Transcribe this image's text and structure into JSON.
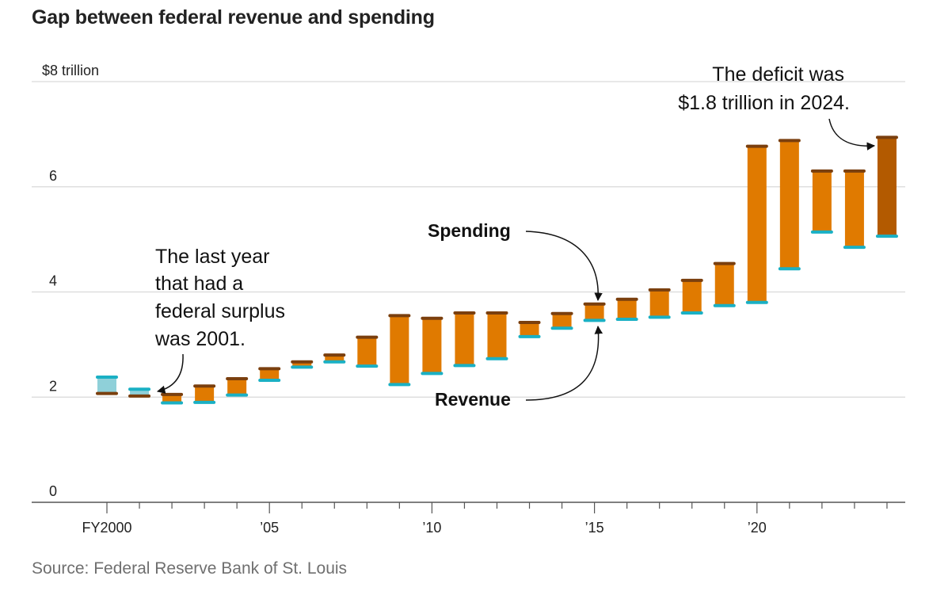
{
  "chart_data": {
    "type": "range-bar",
    "title": "Gap between federal revenue and spending",
    "source": "Source: Federal Reserve Bank of St. Louis",
    "y_unit_label": "$8 trillion",
    "ylim": [
      0,
      8
    ],
    "y_ticks": [
      {
        "value": 0,
        "label": "0"
      },
      {
        "value": 2,
        "label": "2"
      },
      {
        "value": 4,
        "label": "4"
      },
      {
        "value": 6,
        "label": "6"
      },
      {
        "value": 8,
        "label": "$8 trillion"
      }
    ],
    "xlim": [
      1999.5,
      2024.5
    ],
    "x_ticks": [
      {
        "value": 2000,
        "label": "FY2000"
      },
      {
        "value": 2005,
        "label": "’05"
      },
      {
        "value": 2010,
        "label": "’10"
      },
      {
        "value": 2015,
        "label": "’15"
      },
      {
        "value": 2020,
        "label": "’20"
      }
    ],
    "grid": true,
    "series": [
      {
        "name": "Spending",
        "color": "#7a3f0e"
      },
      {
        "name": "Revenue",
        "color": "#1ab0c4"
      }
    ],
    "colors": {
      "deficit_fill": "#e07a00",
      "surplus_fill": "#8fd0d9",
      "highlight_fill": "#b35a00",
      "spending_cap": "#7a3f0e",
      "revenue_cap": "#1ab0c4"
    },
    "data": [
      {
        "year": 2000,
        "revenue": 2.38,
        "spending": 2.07
      },
      {
        "year": 2001,
        "revenue": 2.15,
        "spending": 2.02
      },
      {
        "year": 2002,
        "revenue": 1.89,
        "spending": 2.05
      },
      {
        "year": 2003,
        "revenue": 1.9,
        "spending": 2.21
      },
      {
        "year": 2004,
        "revenue": 2.04,
        "spending": 2.35
      },
      {
        "year": 2005,
        "revenue": 2.32,
        "spending": 2.54
      },
      {
        "year": 2006,
        "revenue": 2.57,
        "spending": 2.67
      },
      {
        "year": 2007,
        "revenue": 2.67,
        "spending": 2.8
      },
      {
        "year": 2008,
        "revenue": 2.59,
        "spending": 3.14
      },
      {
        "year": 2009,
        "revenue": 2.24,
        "spending": 3.55
      },
      {
        "year": 2010,
        "revenue": 2.45,
        "spending": 3.5
      },
      {
        "year": 2011,
        "revenue": 2.6,
        "spending": 3.6
      },
      {
        "year": 2012,
        "revenue": 2.73,
        "spending": 3.6
      },
      {
        "year": 2013,
        "revenue": 3.15,
        "spending": 3.42
      },
      {
        "year": 2014,
        "revenue": 3.31,
        "spending": 3.59
      },
      {
        "year": 2015,
        "revenue": 3.46,
        "spending": 3.77
      },
      {
        "year": 2016,
        "revenue": 3.48,
        "spending": 3.86
      },
      {
        "year": 2017,
        "revenue": 3.52,
        "spending": 4.04
      },
      {
        "year": 2018,
        "revenue": 3.6,
        "spending": 4.22
      },
      {
        "year": 2019,
        "revenue": 3.74,
        "spending": 4.54
      },
      {
        "year": 2020,
        "revenue": 3.8,
        "spending": 6.77
      },
      {
        "year": 2021,
        "revenue": 4.44,
        "spending": 6.88
      },
      {
        "year": 2022,
        "revenue": 5.14,
        "spending": 6.3
      },
      {
        "year": 2023,
        "revenue": 4.85,
        "spending": 6.3
      },
      {
        "year": 2024,
        "revenue": 5.06,
        "spending": 6.94
      }
    ],
    "annotations": {
      "surplus_note": [
        "The last year",
        "that had a",
        "federal surplus",
        "was 2001."
      ],
      "deficit_note": [
        "The deficit was",
        "$1.8 trillion in 2024."
      ],
      "spending_label": "Spending",
      "revenue_label": "Revenue"
    }
  }
}
